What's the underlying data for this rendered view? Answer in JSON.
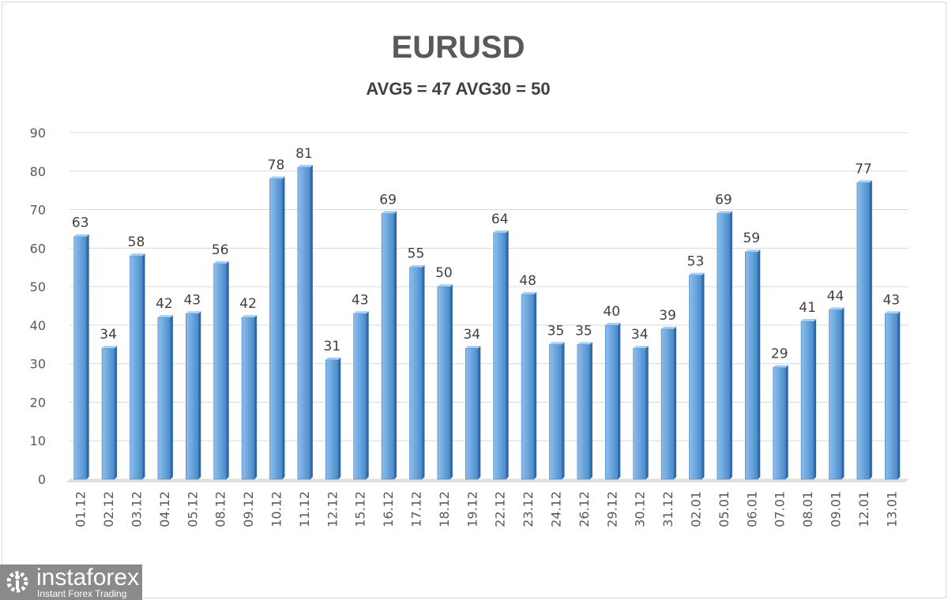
{
  "chart_data": {
    "type": "bar",
    "title": "EURUSD",
    "subtitle": "AVG5 = 47 AVG30 = 50",
    "xlabel": "",
    "ylabel": "",
    "ylim": [
      0,
      90
    ],
    "yticks": [
      0,
      10,
      20,
      30,
      40,
      50,
      60,
      70,
      80,
      90
    ],
    "grid": true,
    "legend": "none",
    "bar_color": "#5b9bd5",
    "categories": [
      "01.12",
      "02.12",
      "03.12",
      "04.12",
      "05.12",
      "08.12",
      "09.12",
      "10.12",
      "11.12",
      "12.12",
      "15.12",
      "16.12",
      "17.12",
      "18.12",
      "19.12",
      "22.12",
      "23.12",
      "24.12",
      "26.12",
      "29.12",
      "30.12",
      "31.12",
      "02.01",
      "05.01",
      "06.01",
      "07.01",
      "08.01",
      "09.01",
      "12.01",
      "13.01"
    ],
    "values": [
      63,
      34,
      58,
      42,
      43,
      56,
      42,
      78,
      81,
      31,
      43,
      69,
      55,
      50,
      34,
      64,
      48,
      35,
      35,
      40,
      34,
      39,
      53,
      69,
      59,
      29,
      41,
      44,
      77,
      43
    ]
  },
  "logo": {
    "name": "instaforex",
    "tagline": "Instant Forex Trading"
  }
}
